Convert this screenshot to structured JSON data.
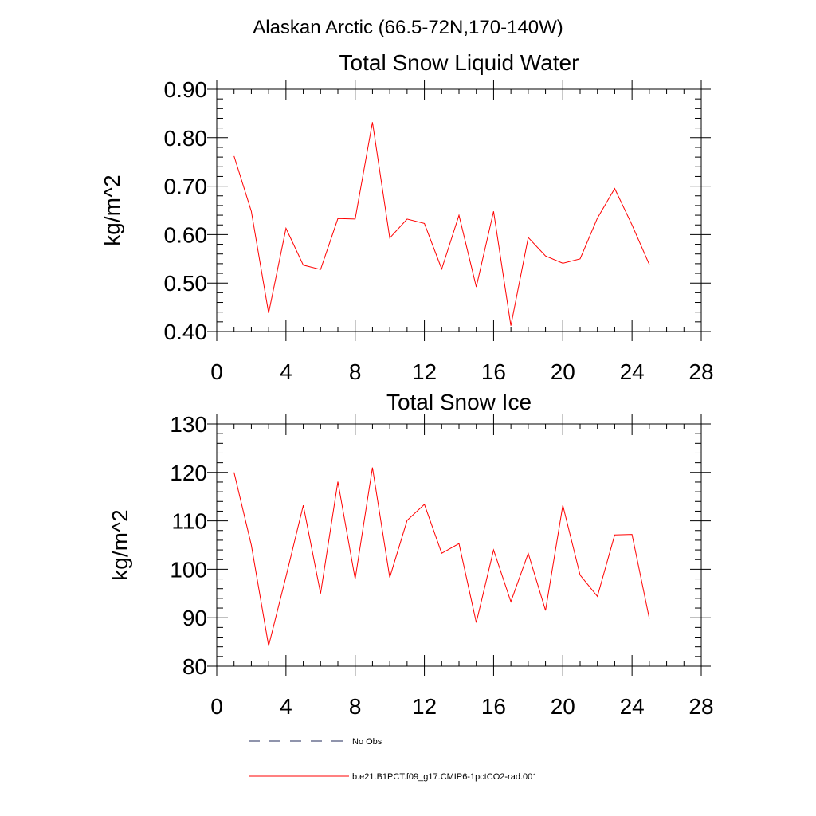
{
  "figure": {
    "title": "Alaskan Arctic (66.5-72N,170-140W)"
  },
  "legend": {
    "entries": [
      {
        "label": "No Obs",
        "style": "dashed",
        "color": "#1f2a5a"
      },
      {
        "label": "b.e21.B1PCT.f09_g17.CMIP6-1pctCO2-rad.001",
        "style": "solid",
        "color": "#ff0000"
      }
    ]
  },
  "chart_data": [
    {
      "type": "line",
      "title": "Total Snow Liquid Water",
      "xlabel": "",
      "ylabel": "kg/m^2",
      "xlim": [
        0,
        28
      ],
      "ylim": [
        0.4,
        0.9
      ],
      "xticks": [
        0,
        4,
        8,
        12,
        16,
        20,
        24,
        28
      ],
      "xtick_labels": [
        "0",
        "4",
        "8",
        "12",
        "16",
        "20",
        "24",
        "28"
      ],
      "yticks": [
        0.4,
        0.5,
        0.6,
        0.7,
        0.8,
        0.9
      ],
      "ytick_labels": [
        "0.40",
        "0.50",
        "0.60",
        "0.70",
        "0.80",
        "0.90"
      ],
      "series": [
        {
          "name": "b.e21.B1PCT.f09_g17.CMIP6-1pctCO2-rad.001",
          "color": "#ff0000",
          "x": [
            1,
            2,
            3,
            4,
            5,
            6,
            7,
            8,
            9,
            10,
            11,
            12,
            13,
            14,
            15,
            16,
            17,
            18,
            19,
            20,
            21,
            22,
            23,
            24,
            25
          ],
          "y": [
            0.762,
            0.648,
            0.438,
            0.613,
            0.537,
            0.528,
            0.633,
            0.632,
            0.832,
            0.593,
            0.632,
            0.623,
            0.529,
            0.64,
            0.492,
            0.648,
            0.412,
            0.594,
            0.556,
            0.541,
            0.55,
            0.634,
            0.695,
            0.62,
            0.538
          ]
        }
      ]
    },
    {
      "type": "line",
      "title": "Total Snow Ice",
      "xlabel": "",
      "ylabel": "kg/m^2",
      "xlim": [
        0,
        28
      ],
      "ylim": [
        80,
        130
      ],
      "xticks": [
        0,
        4,
        8,
        12,
        16,
        20,
        24,
        28
      ],
      "xtick_labels": [
        "0",
        "4",
        "8",
        "12",
        "16",
        "20",
        "24",
        "28"
      ],
      "yticks": [
        80,
        90,
        100,
        110,
        120,
        130
      ],
      "ytick_labels": [
        "80",
        "90",
        "100",
        "110",
        "120",
        "130"
      ],
      "series": [
        {
          "name": "b.e21.B1PCT.f09_g17.CMIP6-1pctCO2-rad.001",
          "color": "#ff0000",
          "x": [
            1,
            2,
            3,
            4,
            5,
            6,
            7,
            8,
            9,
            10,
            11,
            12,
            13,
            14,
            15,
            16,
            17,
            18,
            19,
            20,
            21,
            22,
            23,
            24,
            25
          ],
          "y": [
            120.0,
            105.0,
            84.2,
            98.5,
            113.2,
            95.0,
            118.1,
            98.0,
            121.0,
            98.3,
            110.1,
            113.4,
            103.3,
            105.3,
            89.0,
            104.0,
            93.3,
            103.3,
            91.5,
            113.2,
            98.8,
            94.4,
            107.1,
            107.2,
            89.8
          ]
        }
      ]
    }
  ]
}
